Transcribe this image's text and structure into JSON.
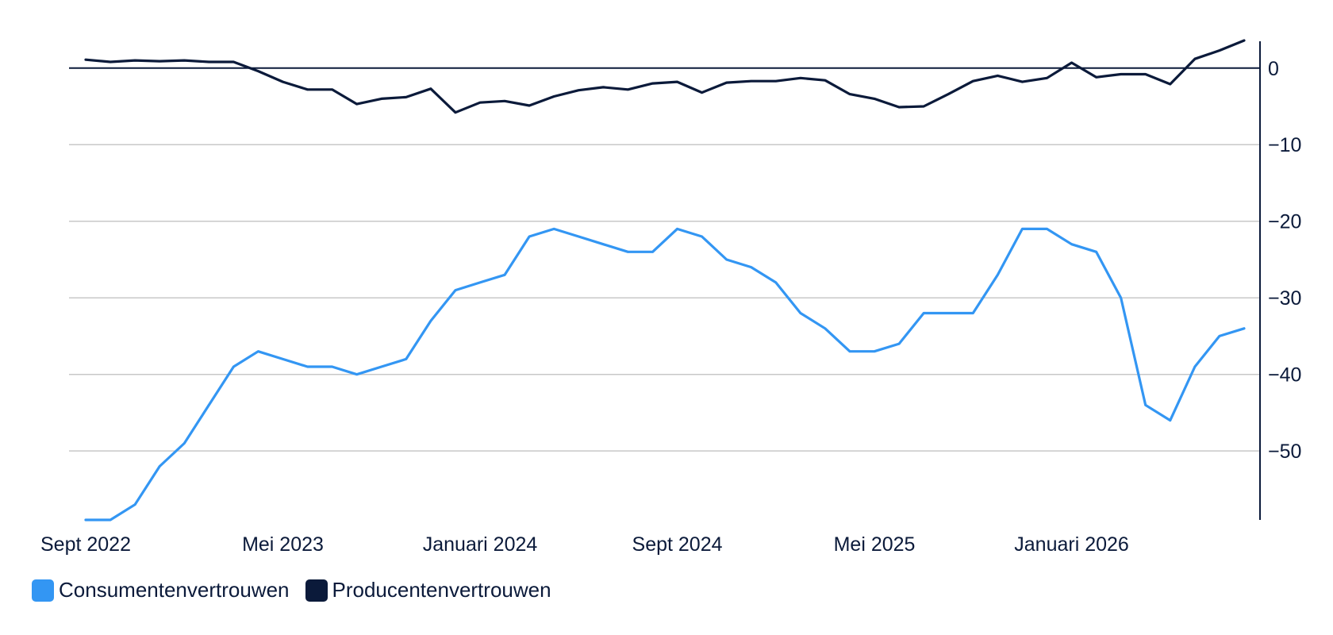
{
  "chart_data": {
    "type": "line",
    "x_labels": [
      "Sept 2022",
      "Mei 2023",
      "Januari 2024",
      "Sept 2024",
      "Mei 2025",
      "Januari 2026"
    ],
    "ylim": [
      -59,
      3.5
    ],
    "y_ticks": [
      0,
      -10,
      -20,
      -30,
      -40,
      -50
    ],
    "y_tick_labels": [
      "0",
      "−10",
      "−20",
      "−30",
      "−40",
      "−50"
    ],
    "grid": true,
    "y_axis_position": "right",
    "legend_position": "bottom-left",
    "series": [
      {
        "name": "Consumentenvertrouwen",
        "color": "#3396f3",
        "values": [
          -59,
          -59,
          -57,
          -52,
          -49,
          -44,
          -39,
          -37,
          -38,
          -39,
          -39,
          -40,
          -39,
          -38,
          -33,
          -29,
          -28,
          -27,
          -22,
          -21,
          -22,
          -23,
          -24,
          -24,
          -21,
          -22,
          -25,
          -26,
          -28,
          -32,
          -34,
          -37,
          -37,
          -36,
          -32,
          -32,
          -32,
          -27,
          -21,
          -21,
          -23,
          -24,
          -30,
          -44,
          -46,
          -39,
          -35,
          -34
        ]
      },
      {
        "name": "Producentenvertrouwen",
        "color": "#0b1a3a",
        "values": [
          1.1,
          0.8,
          1.0,
          0.9,
          1.0,
          0.8,
          0.8,
          -0.4,
          -1.8,
          -2.8,
          -2.8,
          -4.7,
          -4.0,
          -3.8,
          -2.7,
          -5.8,
          -4.5,
          -4.3,
          -4.9,
          -3.7,
          -2.9,
          -2.5,
          -2.8,
          -2.0,
          -1.8,
          -3.2,
          -1.9,
          -1.7,
          -1.7,
          -1.3,
          -1.6,
          -3.4,
          -4.0,
          -5.1,
          -5.0,
          -3.4,
          -1.7,
          -1.0,
          -1.8,
          -1.3,
          0.7,
          -1.2,
          -0.8,
          -0.8,
          -2.1,
          1.2,
          2.3,
          3.6
        ]
      }
    ]
  }
}
